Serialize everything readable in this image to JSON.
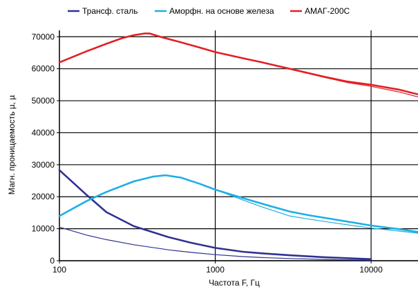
{
  "chart_data": {
    "type": "line",
    "xlabel": "Частота F, Гц",
    "ylabel": "Магн. проницаемость µ, µ",
    "x_scale": "log",
    "xlim": [
      100,
      20000
    ],
    "ylim": [
      0,
      72000
    ],
    "x_ticks": [
      100,
      1000,
      10000
    ],
    "x_tick_labels": [
      "100",
      "1000",
      "10000"
    ],
    "y_ticks": [
      0,
      10000,
      20000,
      30000,
      40000,
      50000,
      60000,
      70000
    ],
    "y_tick_labels": [
      "0",
      "10000",
      "20000",
      "30000",
      "40000",
      "50000",
      "60000",
      "70000"
    ],
    "grid": true,
    "legend_position": "top",
    "series": [
      {
        "name": "Трансф. сталь",
        "color": "#2e3192",
        "curves": [
          {
            "x": [
              100,
              150,
              200,
              300,
              500,
              700,
              1000,
              1500,
              2000,
              3000,
              5000,
              7000,
              10000
            ],
            "y": [
              28300,
              20500,
              15200,
              10800,
              7400,
              5600,
              4000,
              2800,
              2300,
              1700,
              1100,
              800,
              500
            ]
          },
          {
            "x": [
              100,
              150,
              200,
              300,
              500,
              700,
              1000,
              1500,
              2000,
              3000,
              5000,
              7000,
              10000
            ],
            "y": [
              10500,
              8000,
              6600,
              5000,
              3400,
              2600,
              1900,
              1300,
              1000,
              700,
              400,
              250,
              150
            ]
          }
        ]
      },
      {
        "name": "Аморфн. на основе железа",
        "color": "#1eaee4",
        "curves": [
          {
            "x": [
              100,
              150,
              200,
              300,
              400,
              480,
              600,
              800,
              1000,
              1500,
              2000,
              3000,
              4000,
              6000,
              10000,
              15000,
              20000
            ],
            "y": [
              14000,
              18700,
              21500,
              24800,
              26300,
              26700,
              26000,
              24000,
              22200,
              19600,
              17800,
              15400,
              14200,
              12800,
              11000,
              9900,
              9000
            ]
          },
          {
            "x": [
              100,
              150,
              200,
              300,
              400,
              480,
              600,
              800,
              1000,
              1500,
              2000,
              3000,
              4000,
              6000,
              10000,
              15000,
              20000
            ],
            "y": [
              14000,
              18700,
              21500,
              24800,
              26300,
              26700,
              26000,
              24000,
              22200,
              19000,
              16800,
              14000,
              13000,
              11700,
              10200,
              9300,
              8600
            ]
          }
        ]
      },
      {
        "name": "АМАГ-200С",
        "color": "#e31e24",
        "curves": [
          {
            "x": [
              100,
              150,
              200,
              250,
              300,
              350,
              380,
              450,
              600,
              800,
              1000,
              1500,
              2000,
              3000,
              5000,
              7000,
              10000,
              15000,
              20000
            ],
            "y": [
              62000,
              65500,
              67800,
              69500,
              70500,
              71000,
              71000,
              69900,
              68300,
              66600,
              65200,
              63300,
              62000,
              60000,
              57500,
              56000,
              55000,
              53500,
              52000
            ]
          },
          {
            "x": [
              100,
              150,
              200,
              250,
              300,
              350,
              380,
              450,
              600,
              800,
              1000,
              1500,
              2000,
              3000,
              5000,
              7000,
              10000,
              15000,
              20000
            ],
            "y": [
              62000,
              65500,
              67800,
              69500,
              70500,
              71000,
              71000,
              69900,
              68300,
              66600,
              65200,
              63300,
              62000,
              60000,
              57300,
              55700,
              54500,
              52800,
              51200
            ]
          }
        ]
      }
    ]
  }
}
